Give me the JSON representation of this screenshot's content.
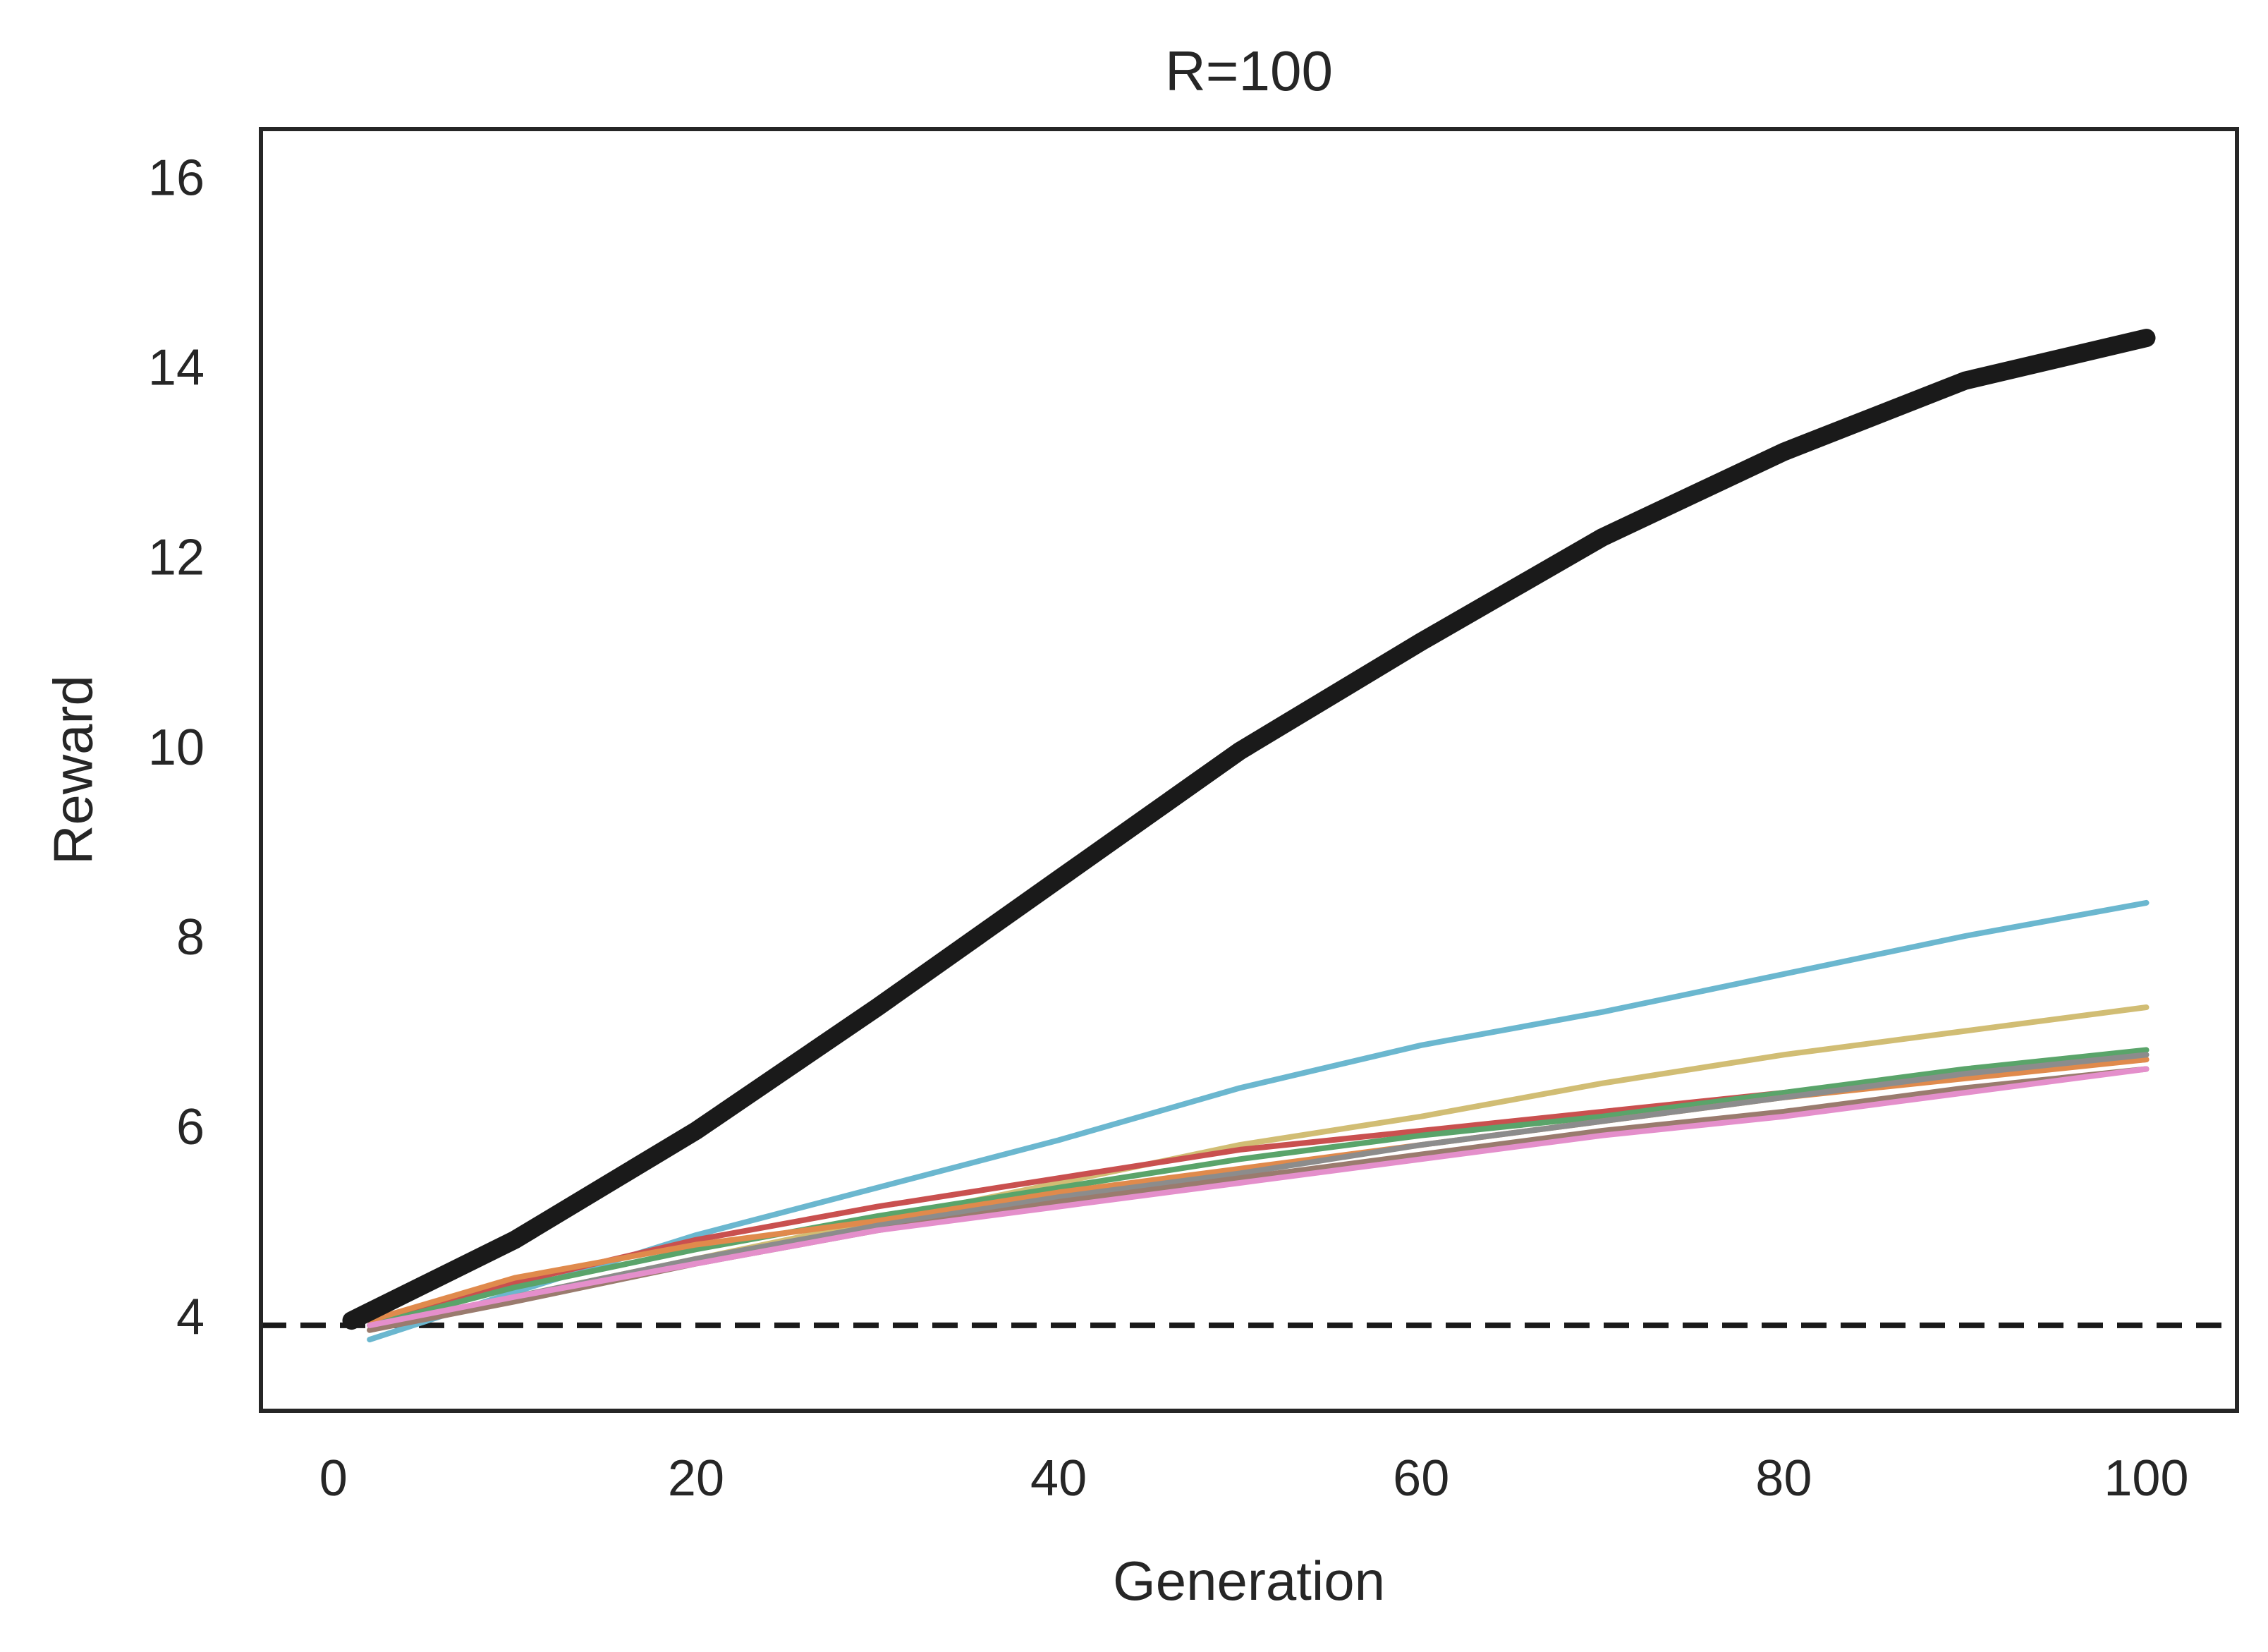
{
  "chart_data": {
    "type": "line",
    "title": "R=100",
    "xlabel": "Generation",
    "ylabel": "Reward",
    "xlim": [
      -4,
      105
    ],
    "ylim": [
      3.0,
      16.5
    ],
    "xticks": [
      0,
      20,
      40,
      60,
      80,
      100
    ],
    "yticks": [
      4,
      6,
      8,
      10,
      12,
      14,
      16
    ],
    "grid": false,
    "legend": "none",
    "baseline": {
      "y": 3.9,
      "style": "dashed",
      "color": "#1a1a1a"
    },
    "series": [
      {
        "color": "#1a1a1a",
        "width": 26,
        "x": [
          1,
          10,
          20,
          30,
          40,
          50,
          60,
          70,
          80,
          90,
          100
        ],
        "y": [
          3.95,
          4.8,
          5.95,
          7.25,
          8.6,
          9.95,
          11.1,
          12.2,
          13.1,
          13.85,
          14.3
        ]
      },
      {
        "color": "#6bb7cf",
        "width": 8,
        "x": [
          2,
          10,
          20,
          30,
          40,
          50,
          60,
          70,
          80,
          90,
          100
        ],
        "y": [
          3.75,
          4.25,
          4.85,
          5.35,
          5.85,
          6.4,
          6.85,
          7.2,
          7.6,
          8.0,
          8.35
        ]
      },
      {
        "color": "#d1bd74",
        "width": 8,
        "x": [
          2,
          10,
          20,
          30,
          40,
          50,
          60,
          70,
          80,
          90,
          100
        ],
        "y": [
          3.85,
          4.2,
          4.6,
          5.0,
          5.4,
          5.8,
          6.1,
          6.45,
          6.75,
          7.0,
          7.25
        ]
      },
      {
        "color": "#c9504f",
        "width": 8,
        "x": [
          2,
          10,
          20,
          30,
          40,
          50,
          60,
          70,
          80,
          90,
          100
        ],
        "y": [
          3.9,
          4.35,
          4.8,
          5.15,
          5.45,
          5.75,
          5.95,
          6.15,
          6.35,
          6.55,
          6.7
        ]
      },
      {
        "color": "#5aa46a",
        "width": 8,
        "x": [
          2,
          10,
          20,
          30,
          40,
          50,
          60,
          70,
          80,
          90,
          100
        ],
        "y": [
          3.9,
          4.3,
          4.7,
          5.05,
          5.35,
          5.65,
          5.9,
          6.1,
          6.35,
          6.6,
          6.8
        ]
      },
      {
        "color": "#e08a4c",
        "width": 8,
        "x": [
          2,
          10,
          20,
          30,
          40,
          50,
          60,
          70,
          80,
          90,
          100
        ],
        "y": [
          3.95,
          4.4,
          4.75,
          5.0,
          5.3,
          5.55,
          5.8,
          6.05,
          6.3,
          6.5,
          6.7
        ]
      },
      {
        "color": "#8c8c8c",
        "width": 8,
        "x": [
          2,
          10,
          20,
          30,
          40,
          50,
          60,
          70,
          80,
          90,
          100
        ],
        "y": [
          3.85,
          4.2,
          4.6,
          4.95,
          5.25,
          5.5,
          5.8,
          6.05,
          6.3,
          6.55,
          6.75
        ]
      },
      {
        "color": "#9a7b6e",
        "width": 8,
        "x": [
          2,
          10,
          20,
          30,
          40,
          50,
          60,
          70,
          80,
          90,
          100
        ],
        "y": [
          3.85,
          4.15,
          4.55,
          4.9,
          5.2,
          5.45,
          5.7,
          5.95,
          6.15,
          6.4,
          6.6
        ]
      },
      {
        "color": "#e48fcb",
        "width": 8,
        "x": [
          2,
          10,
          20,
          30,
          40,
          50,
          60,
          70,
          80,
          90,
          100
        ],
        "y": [
          3.9,
          4.2,
          4.55,
          4.9,
          5.15,
          5.4,
          5.65,
          5.9,
          6.1,
          6.35,
          6.6
        ]
      }
    ]
  }
}
